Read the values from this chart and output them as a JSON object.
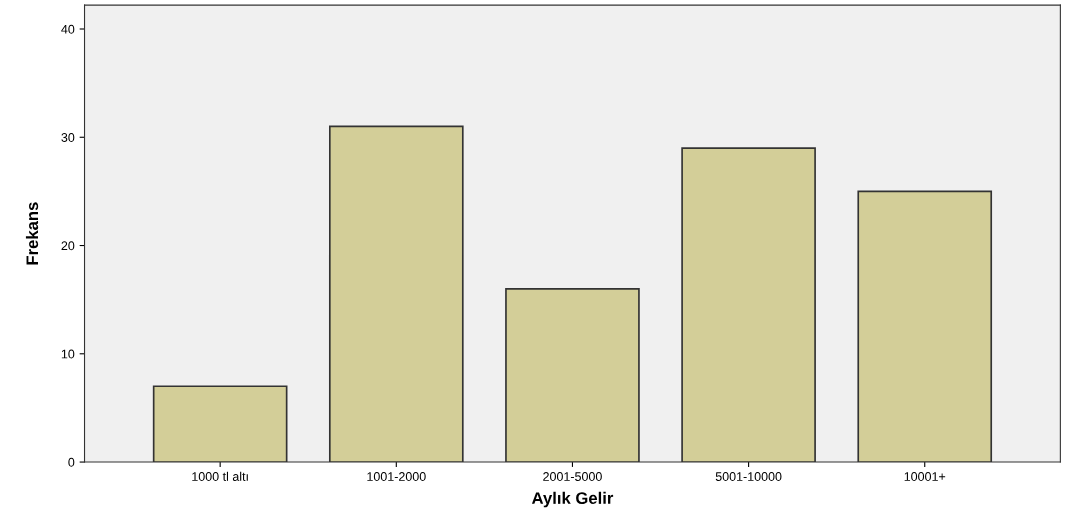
{
  "chart_data": {
    "type": "bar",
    "xlabel": "Aylık Gelir",
    "ylabel": "Frekans",
    "categories": [
      "1000 tl altı",
      "1001-2000",
      "2001-5000",
      "5001-10000",
      "10001+"
    ],
    "values": [
      7,
      31,
      16,
      29,
      25
    ],
    "color": "#d3ce98",
    "ylim": [
      0,
      42.2
    ],
    "yticks": [
      0,
      10,
      20,
      30,
      40
    ],
    "grid": false
  }
}
